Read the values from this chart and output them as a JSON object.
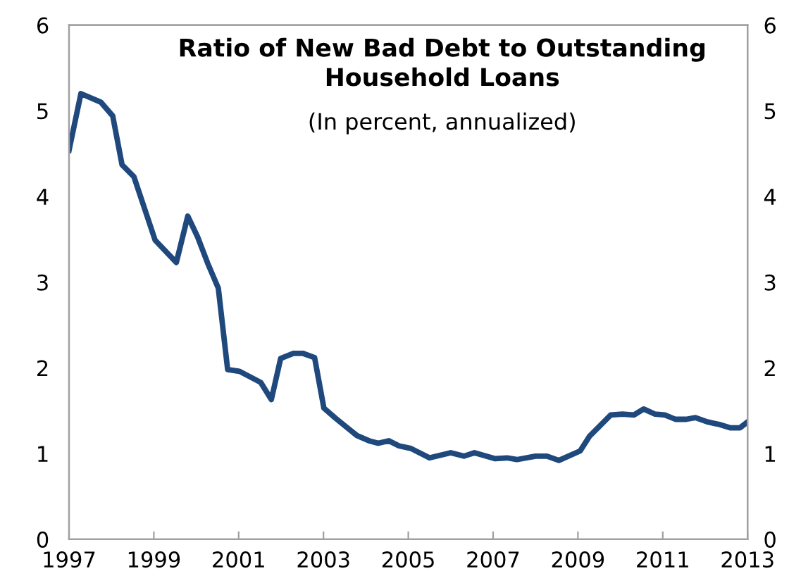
{
  "chart_data": {
    "type": "line",
    "title": "Ratio of New Bad Debt to Outstanding\nHousehold Loans",
    "subtitle": "(In percent, annualized)",
    "x": [
      1997.0,
      1997.28,
      1997.75,
      1998.03,
      1998.25,
      1998.53,
      1999.03,
      1999.53,
      1999.8,
      2000.03,
      2000.27,
      2000.52,
      2000.74,
      2001.02,
      2001.29,
      2001.52,
      2001.77,
      2001.99,
      2002.29,
      2002.51,
      2002.79,
      2003.01,
      2003.29,
      2003.54,
      2003.79,
      2004.07,
      2004.29,
      2004.54,
      2004.78,
      2005.06,
      2005.5,
      2006.0,
      2006.31,
      2006.56,
      2007.05,
      2007.33,
      2007.56,
      2008.0,
      2008.27,
      2008.55,
      2009.05,
      2009.27,
      2009.49,
      2009.77,
      2010.05,
      2010.32,
      2010.55,
      2010.82,
      2011.05,
      2011.3,
      2011.55,
      2011.77,
      2012.05,
      2012.33,
      2012.6,
      2012.82,
      2013.0
    ],
    "series": [
      {
        "color": "#1f497d",
        "values": [
          4.54,
          5.2,
          5.1,
          4.94,
          4.37,
          4.23,
          3.49,
          3.23,
          3.77,
          3.53,
          3.22,
          2.93,
          1.98,
          1.96,
          1.89,
          1.83,
          1.63,
          2.11,
          2.17,
          2.17,
          2.12,
          1.53,
          1.41,
          1.31,
          1.21,
          1.15,
          1.12,
          1.15,
          1.09,
          1.06,
          0.95,
          1.01,
          0.97,
          1.01,
          0.94,
          0.95,
          0.93,
          0.97,
          0.97,
          0.92,
          1.03,
          1.2,
          1.31,
          1.45,
          1.46,
          1.45,
          1.52,
          1.46,
          1.45,
          1.4,
          1.4,
          1.42,
          1.37,
          1.34,
          1.3,
          1.3,
          1.37
        ]
      }
    ],
    "xlim": [
      1997,
      2013
    ],
    "xticks": [
      1997,
      1999,
      2001,
      2003,
      2005,
      2007,
      2009,
      2011,
      2013
    ],
    "ylim": [
      0,
      6
    ],
    "yticks": [
      0,
      1,
      2,
      3,
      4,
      5,
      6
    ],
    "y2lim": [
      0,
      6
    ],
    "y2ticks": [
      0,
      1,
      2,
      3,
      4,
      5,
      6
    ],
    "grid": false,
    "legend": false,
    "marker": "none",
    "line_style": "solid"
  }
}
